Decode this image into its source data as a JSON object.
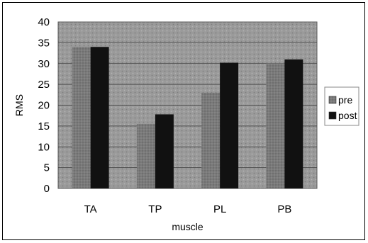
{
  "chart_data": {
    "type": "bar",
    "categories": [
      "TA",
      "TP",
      "PL",
      "PB"
    ],
    "series": [
      {
        "name": "pre",
        "values": [
          34,
          15.5,
          23,
          30
        ],
        "color": "#808080"
      },
      {
        "name": "post",
        "values": [
          34,
          17.8,
          30.2,
          31
        ],
        "color": "#111111"
      }
    ],
    "xlabel": "muscle",
    "ylabel": "RMS",
    "ylim": [
      0,
      40
    ],
    "yticks": [
      "0",
      "5",
      "10",
      "15",
      "20",
      "25",
      "30",
      "35",
      "40"
    ],
    "grid": true,
    "legend": "right",
    "plot_background": "#9a9a9a"
  }
}
